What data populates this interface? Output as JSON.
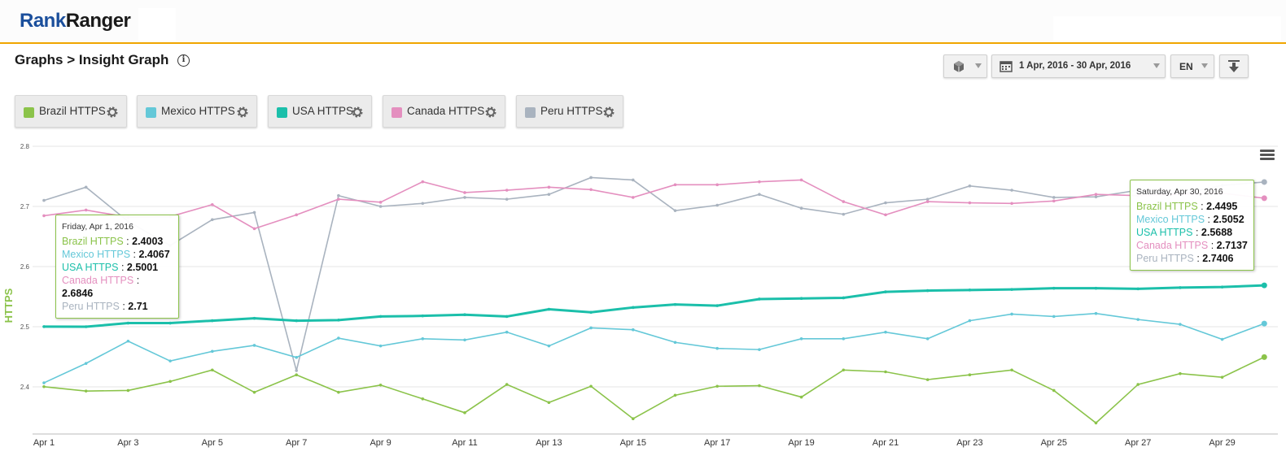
{
  "logo": {
    "part1": "Rank",
    "part2": "Ranger"
  },
  "breadcrumb": "Graphs > Insight Graph",
  "controls": {
    "date_range": "1 Apr, 2016 - 30 Apr, 2016",
    "language": "EN"
  },
  "icons": {
    "info": "info-icon",
    "cube": "cube-icon",
    "calendar": "calendar-icon",
    "download": "download-icon",
    "gear": "gear-icon",
    "menu": "menu-icon"
  },
  "legend": [
    {
      "label": "Brazil HTTPS",
      "color": "#8bc34a"
    },
    {
      "label": "Mexico HTTPS",
      "color": "#64c8d8"
    },
    {
      "label": "USA HTTPS",
      "color": "#1bbfaa"
    },
    {
      "label": "Canada HTTPS",
      "color": "#e48fbf"
    },
    {
      "label": "Peru HTTPS",
      "color": "#a9b3bf"
    }
  ],
  "tooltip_left": {
    "title": "Friday, Apr 1, 2016",
    "rows": [
      {
        "name": "Brazil HTTPS",
        "value": "2.4003",
        "color": "#8bc34a"
      },
      {
        "name": "Mexico HTTPS",
        "value": "2.4067",
        "color": "#64c8d8"
      },
      {
        "name": "USA HTTPS",
        "value": "2.5001",
        "color": "#1bbfaa"
      },
      {
        "name": "Canada HTTPS",
        "value": "2.6846",
        "color": "#e48fbf"
      },
      {
        "name": "Peru HTTPS",
        "value": "2.71",
        "color": "#a9b3bf"
      }
    ]
  },
  "tooltip_right": {
    "title": "Saturday, Apr 30, 2016",
    "rows": [
      {
        "name": "Brazil HTTPS",
        "value": "2.4495",
        "color": "#8bc34a"
      },
      {
        "name": "Mexico HTTPS",
        "value": "2.5052",
        "color": "#64c8d8"
      },
      {
        "name": "USA HTTPS",
        "value": "2.5688",
        "color": "#1bbfaa"
      },
      {
        "name": "Canada HTTPS",
        "value": "2.7137",
        "color": "#e48fbf"
      },
      {
        "name": "Peru HTTPS",
        "value": "2.7406",
        "color": "#a9b3bf"
      }
    ]
  },
  "chart_data": {
    "type": "line",
    "ylabel": "HTTPS",
    "ylim": [
      2.3,
      2.8
    ],
    "yticks": [
      "2.4",
      "2.5",
      "2.6",
      "2.7",
      "2.8"
    ],
    "ytick_values": [
      2.4,
      2.5,
      2.6,
      2.7,
      2.8
    ],
    "x": [
      "Apr 1",
      "Apr 2",
      "Apr 3",
      "Apr 4",
      "Apr 5",
      "Apr 6",
      "Apr 7",
      "Apr 8",
      "Apr 9",
      "Apr 10",
      "Apr 11",
      "Apr 12",
      "Apr 13",
      "Apr 14",
      "Apr 15",
      "Apr 16",
      "Apr 17",
      "Apr 18",
      "Apr 19",
      "Apr 20",
      "Apr 21",
      "Apr 22",
      "Apr 23",
      "Apr 24",
      "Apr 25",
      "Apr 26",
      "Apr 27",
      "Apr 28",
      "Apr 29",
      "Apr 30"
    ],
    "xtick_labels": [
      "Apr 1",
      "Apr 3",
      "Apr 5",
      "Apr 7",
      "Apr 9",
      "Apr 11",
      "Apr 13",
      "Apr 15",
      "Apr 17",
      "Apr 19",
      "Apr 21",
      "Apr 23",
      "Apr 25",
      "Apr 27",
      "Apr 29"
    ],
    "grid": true,
    "series": [
      {
        "name": "Peru HTTPS",
        "color": "#a9b3bf",
        "values": [
          2.71,
          2.732,
          2.675,
          2.635,
          2.678,
          2.69,
          2.427,
          2.718,
          2.7,
          2.705,
          2.715,
          2.712,
          2.72,
          2.748,
          2.744,
          2.693,
          2.702,
          2.72,
          2.697,
          2.687,
          2.706,
          2.712,
          2.734,
          2.727,
          2.715,
          2.716,
          2.727,
          2.72,
          2.735,
          2.7406
        ]
      },
      {
        "name": "Canada HTTPS",
        "color": "#e48fbf",
        "values": [
          2.6846,
          2.694,
          2.682,
          2.683,
          2.703,
          2.663,
          2.686,
          2.712,
          2.707,
          2.741,
          2.723,
          2.727,
          2.732,
          2.728,
          2.715,
          2.736,
          2.736,
          2.741,
          2.744,
          2.708,
          2.686,
          2.708,
          2.706,
          2.705,
          2.709,
          2.72,
          2.718,
          2.72,
          2.722,
          2.7137
        ]
      },
      {
        "name": "USA HTTPS",
        "color": "#1bbfaa",
        "values": [
          2.5001,
          2.5,
          2.506,
          2.506,
          2.51,
          2.514,
          2.51,
          2.511,
          2.517,
          2.518,
          2.52,
          2.517,
          2.529,
          2.524,
          2.532,
          2.537,
          2.535,
          2.546,
          2.547,
          2.548,
          2.558,
          2.56,
          2.561,
          2.562,
          2.564,
          2.564,
          2.563,
          2.565,
          2.566,
          2.5688
        ]
      },
      {
        "name": "Mexico HTTPS",
        "color": "#64c8d8",
        "values": [
          2.4067,
          2.439,
          2.476,
          2.443,
          2.459,
          2.469,
          2.449,
          2.481,
          2.468,
          2.48,
          2.478,
          2.491,
          2.468,
          2.498,
          2.495,
          2.474,
          2.464,
          2.462,
          2.48,
          2.48,
          2.491,
          2.48,
          2.51,
          2.521,
          2.517,
          2.522,
          2.512,
          2.504,
          2.479,
          2.5052
        ]
      },
      {
        "name": "Brazil HTTPS",
        "color": "#8bc34a",
        "values": [
          2.4003,
          2.393,
          2.394,
          2.409,
          2.428,
          2.391,
          2.42,
          2.391,
          2.403,
          2.38,
          2.357,
          2.404,
          2.374,
          2.401,
          2.347,
          2.386,
          2.401,
          2.402,
          2.383,
          2.428,
          2.425,
          2.412,
          2.42,
          2.428,
          2.394,
          2.34,
          2.404,
          2.422,
          2.416,
          2.4495
        ]
      }
    ]
  }
}
